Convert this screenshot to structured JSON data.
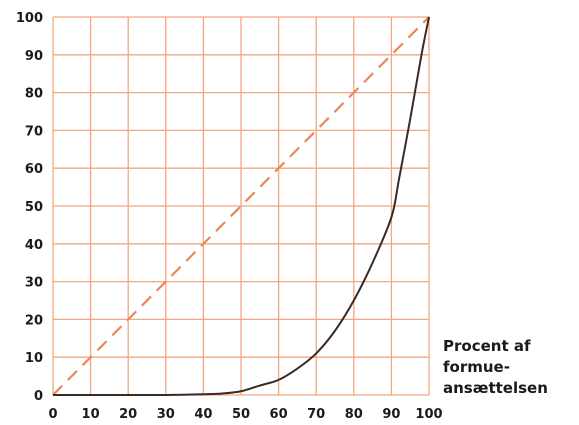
{
  "chart_data": {
    "type": "line",
    "title": "",
    "xlabel_lines": [
      "Procent af",
      "formue-",
      "ansættelsen"
    ],
    "ylabel": "",
    "xlim": [
      0,
      100
    ],
    "ylim": [
      0,
      100
    ],
    "x_ticks": [
      0,
      10,
      20,
      30,
      40,
      50,
      60,
      70,
      80,
      90,
      100
    ],
    "y_ticks": [
      0,
      10,
      20,
      30,
      40,
      50,
      60,
      70,
      80,
      90,
      100
    ],
    "grid": true,
    "series": [
      {
        "style": "dashed",
        "color": "#e8875a",
        "x": [
          0,
          100
        ],
        "y": [
          0,
          100
        ]
      },
      {
        "style": "solid",
        "color": "#3a2a22",
        "x": [
          0,
          10,
          20,
          30,
          40,
          45,
          50,
          55,
          60,
          65,
          70,
          75,
          80,
          85,
          90,
          92,
          95,
          98,
          100
        ],
        "y": [
          0,
          0,
          0,
          0,
          0.2,
          0.4,
          1,
          2.5,
          4,
          7,
          11,
          17,
          25,
          35,
          47,
          57,
          73,
          90,
          100
        ]
      }
    ],
    "colors": {
      "grid": "#f0a882",
      "diagonal": "#e8875a",
      "curve": "#3a2a22"
    }
  }
}
